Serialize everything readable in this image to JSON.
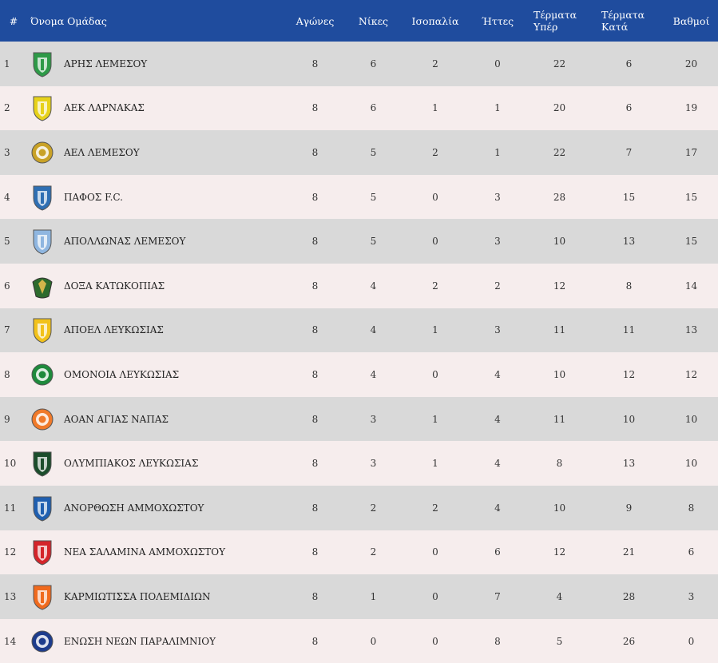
{
  "headers": {
    "rank": "#",
    "team": "Όνομα Ομάδας",
    "played": "Αγώνες",
    "wins": "Νίκες",
    "draws": "Ισοπαλία",
    "losses": "Ήττες",
    "goals_for": "Τέρματα\nΥπέρ",
    "goals_against": "Τέρματα\nΚατά",
    "points": "Βαθμοί"
  },
  "rows": [
    {
      "rank": "1",
      "team": "ΑΡΗΣ ΛΕΜΕΣΟΥ",
      "played": "8",
      "wins": "6",
      "draws": "2",
      "losses": "0",
      "gf": "22",
      "ga": "6",
      "pts": "20",
      "logo": "shield-green-ares",
      "color": "#2e9a48"
    },
    {
      "rank": "2",
      "team": "ΑΕΚ ΛΑΡΝΑΚΑΣ",
      "played": "8",
      "wins": "6",
      "draws": "1",
      "losses": "1",
      "gf": "20",
      "ga": "6",
      "pts": "19",
      "logo": "shield-yellow-green",
      "color": "#e7d21a"
    },
    {
      "rank": "3",
      "team": "ΑΕΛ ΛΕΜΕΣΟΥ",
      "played": "8",
      "wins": "5",
      "draws": "2",
      "losses": "1",
      "gf": "22",
      "ga": "7",
      "pts": "17",
      "logo": "circle-gold-black",
      "color": "#c9a227"
    },
    {
      "rank": "4",
      "team": "ΠΑΦΟΣ F.C.",
      "played": "8",
      "wins": "5",
      "draws": "0",
      "losses": "3",
      "gf": "28",
      "ga": "15",
      "pts": "15",
      "logo": "shield-blue-white",
      "color": "#2f6fb3"
    },
    {
      "rank": "5",
      "team": "ΑΠΟΛΛΩΝΑΣ ΛΕΜΕΣΟΥ",
      "played": "8",
      "wins": "5",
      "draws": "0",
      "losses": "3",
      "gf": "10",
      "ga": "13",
      "pts": "15",
      "logo": "shield-lightblue",
      "color": "#8fb6e0"
    },
    {
      "rank": "6",
      "team": "ΔΟΞΑ ΚΑΤΩΚΟΠΙΑΣ",
      "played": "8",
      "wins": "4",
      "draws": "2",
      "losses": "2",
      "gf": "12",
      "ga": "8",
      "pts": "14",
      "logo": "eagle-green",
      "color": "#2d6b2d"
    },
    {
      "rank": "7",
      "team": "ΑΠΟΕΛ ΛΕΥΚΩΣΙΑΣ",
      "played": "8",
      "wins": "4",
      "draws": "1",
      "losses": "3",
      "gf": "11",
      "ga": "11",
      "pts": "13",
      "logo": "shield-yellow-blue",
      "color": "#f2c21b"
    },
    {
      "rank": "8",
      "team": "ΟΜΟΝΟΙΑ ΛΕΥΚΩΣΙΑΣ",
      "played": "8",
      "wins": "4",
      "draws": "0",
      "losses": "4",
      "gf": "10",
      "ga": "12",
      "pts": "12",
      "logo": "circle-green-clover",
      "color": "#1e8a3c"
    },
    {
      "rank": "9",
      "team": "ΑΟΑΝ ΑΓΙΑΣ ΝΑΠΑΣ",
      "played": "8",
      "wins": "3",
      "draws": "1",
      "losses": "4",
      "gf": "11",
      "ga": "10",
      "pts": "10",
      "logo": "circle-orange",
      "color": "#f07a2a"
    },
    {
      "rank": "10",
      "team": "ΟΛΥΜΠΙΑΚΟΣ ΛΕΥΚΩΣΙΑΣ",
      "played": "8",
      "wins": "3",
      "draws": "1",
      "losses": "4",
      "gf": "8",
      "ga": "13",
      "pts": "10",
      "logo": "shield-dark-green",
      "color": "#1b4d2b"
    },
    {
      "rank": "11",
      "team": "ΑΝΟΡΘΩΣΗ ΑΜΜΟΧΩΣΤΟΥ",
      "played": "8",
      "wins": "2",
      "draws": "2",
      "losses": "4",
      "gf": "10",
      "ga": "9",
      "pts": "8",
      "logo": "shield-blue-stripes",
      "color": "#1f5fb0"
    },
    {
      "rank": "12",
      "team": "ΝΕΑ ΣΑΛΑΜΙΝΑ ΑΜΜΟΧΩΣΤΟΥ",
      "played": "8",
      "wins": "2",
      "draws": "0",
      "losses": "6",
      "gf": "12",
      "ga": "21",
      "pts": "6",
      "logo": "shield-red-stripes",
      "color": "#d4242a"
    },
    {
      "rank": "13",
      "team": "ΚΑΡΜΙΩΤΙΣΣΑ ΠΟΛΕΜΙΔΙΩΝ",
      "played": "8",
      "wins": "1",
      "draws": "0",
      "losses": "7",
      "gf": "4",
      "ga": "28",
      "pts": "3",
      "logo": "shield-orange",
      "color": "#f06a1e"
    },
    {
      "rank": "14",
      "team": "ΕΝΩΣΗ ΝΕΩΝ ΠΑΡΑΛΙΜΝΙΟΥ",
      "played": "8",
      "wins": "0",
      "draws": "0",
      "losses": "8",
      "gf": "5",
      "ga": "26",
      "pts": "0",
      "logo": "circle-blue-red",
      "color": "#1d3c8c"
    }
  ]
}
